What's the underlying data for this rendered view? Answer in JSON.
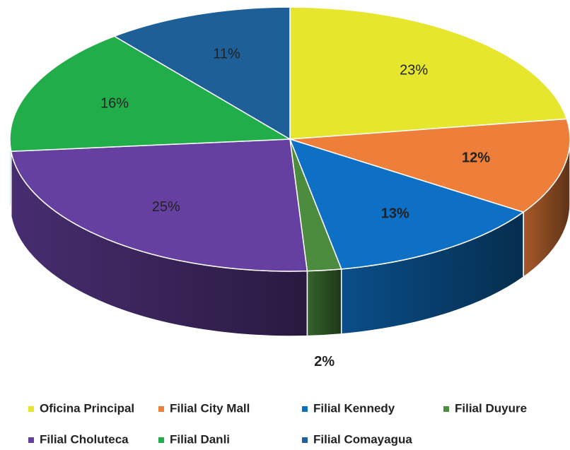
{
  "chart_data": {
    "type": "pie3d",
    "categories": [
      "Oficina Principal",
      "Filial City Mall",
      "Filial Kennedy",
      "Filial Duyure",
      "Filial Choluteca",
      "Filial Danli",
      "Filial Comayagua"
    ],
    "values": [
      23,
      12,
      13,
      2,
      25,
      16,
      11
    ],
    "value_labels": [
      "23%",
      "12%",
      "13%",
      "2%",
      "25%",
      "16%",
      "11%"
    ],
    "colors": [
      "#e6e62e",
      "#ee7f3b",
      "#0e70c4",
      "#4c8c3e",
      "#6640a0",
      "#22ad4b",
      "#1f5f98"
    ],
    "legend": "bottom"
  }
}
